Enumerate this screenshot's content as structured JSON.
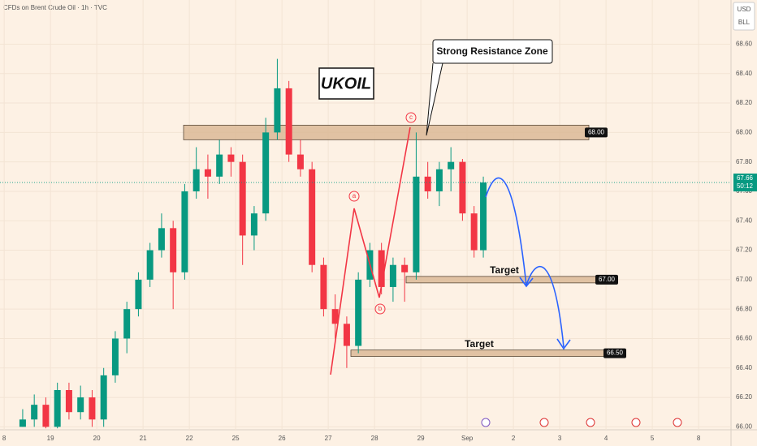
{
  "chart_data": {
    "type": "candlestick",
    "title": "CFDs on Brent Crude Oil · 1h · TVC",
    "currency": "USD",
    "unit": "BLL",
    "x": [
      0.4,
      0.65,
      0.9,
      1.15,
      1.4,
      1.65,
      1.9,
      2.15,
      2.4,
      2.65,
      2.9,
      3.15,
      3.4,
      3.65,
      3.9,
      4.15,
      4.4,
      4.65,
      4.9,
      5.15,
      5.4,
      5.65,
      5.9,
      6.15,
      6.4,
      6.65,
      6.9,
      7.15,
      7.4,
      7.65,
      7.9,
      8.15,
      8.4,
      8.65,
      8.9,
      9.15,
      9.4,
      9.65,
      9.9,
      10.15,
      10.35
    ],
    "ohlc": [
      [
        66.0,
        66.12,
        66.0,
        66.05
      ],
      [
        66.05,
        66.22,
        66.0,
        66.15
      ],
      [
        66.15,
        66.2,
        65.99,
        66.0
      ],
      [
        66.0,
        66.3,
        65.99,
        66.25
      ],
      [
        66.25,
        66.3,
        66.05,
        66.1
      ],
      [
        66.1,
        66.28,
        66.05,
        66.2
      ],
      [
        66.2,
        66.25,
        66.0,
        66.05
      ],
      [
        66.05,
        66.4,
        66.0,
        66.35
      ],
      [
        66.35,
        66.65,
        66.3,
        66.6
      ],
      [
        66.6,
        66.85,
        66.5,
        66.8
      ],
      [
        66.8,
        67.05,
        66.75,
        67.0
      ],
      [
        67.0,
        67.25,
        66.95,
        67.2
      ],
      [
        67.2,
        67.45,
        67.15,
        67.35
      ],
      [
        67.35,
        67.4,
        66.8,
        67.05
      ],
      [
        67.05,
        67.65,
        67.0,
        67.6
      ],
      [
        67.6,
        67.9,
        67.55,
        67.75
      ],
      [
        67.75,
        67.85,
        67.55,
        67.7
      ],
      [
        67.7,
        67.95,
        67.65,
        67.85
      ],
      [
        67.85,
        67.9,
        67.7,
        67.8
      ],
      [
        67.8,
        67.85,
        67.1,
        67.3
      ],
      [
        67.3,
        67.5,
        67.2,
        67.45
      ],
      [
        67.45,
        68.1,
        67.4,
        68.0
      ],
      [
        68.0,
        68.5,
        67.95,
        68.3
      ],
      [
        68.3,
        68.35,
        67.8,
        67.85
      ],
      [
        67.85,
        67.95,
        67.7,
        67.75
      ],
      [
        67.75,
        67.8,
        67.05,
        67.1
      ],
      [
        67.1,
        67.15,
        66.75,
        66.8
      ],
      [
        66.8,
        66.9,
        66.6,
        66.7
      ],
      [
        66.7,
        66.75,
        66.4,
        66.55
      ],
      [
        66.55,
        67.05,
        66.5,
        67.0
      ],
      [
        67.0,
        67.25,
        66.95,
        67.2
      ],
      [
        67.2,
        67.25,
        66.9,
        66.95
      ],
      [
        66.95,
        67.15,
        66.85,
        67.1
      ],
      [
        67.1,
        67.15,
        66.85,
        67.05
      ],
      [
        67.05,
        68.0,
        67.0,
        67.7
      ],
      [
        67.7,
        67.8,
        67.55,
        67.6
      ],
      [
        67.6,
        67.8,
        67.5,
        67.75
      ],
      [
        67.75,
        67.9,
        67.6,
        67.8
      ],
      [
        67.8,
        67.82,
        67.4,
        67.45
      ],
      [
        67.45,
        67.5,
        67.15,
        67.2
      ],
      [
        67.2,
        67.7,
        67.15,
        67.66
      ]
    ],
    "up_color": "#089981",
    "down_color": "#f23645",
    "xlim": [
      -0.09,
      15.7
    ],
    "xticks": [
      {
        "value": 0,
        "label": "8"
      },
      {
        "value": 1,
        "label": "19"
      },
      {
        "value": 2,
        "label": "20"
      },
      {
        "value": 3,
        "label": "21"
      },
      {
        "value": 4,
        "label": "22"
      },
      {
        "value": 5,
        "label": "25"
      },
      {
        "value": 6,
        "label": "26"
      },
      {
        "value": 7,
        "label": "27"
      },
      {
        "value": 8,
        "label": "28"
      },
      {
        "value": 9,
        "label": "29"
      },
      {
        "value": 10,
        "label": "Sep"
      },
      {
        "value": 11,
        "label": "2"
      },
      {
        "value": 12,
        "label": "3"
      },
      {
        "value": 13,
        "label": "4"
      },
      {
        "value": 14,
        "label": "5"
      },
      {
        "value": 15,
        "label": "8"
      }
    ],
    "ylim": [
      65.98,
      68.9
    ],
    "yticks": [
      {
        "value": 66,
        "label": "66.00"
      },
      {
        "value": 66.2,
        "label": "66.20"
      },
      {
        "value": 66.4,
        "label": "66.40"
      },
      {
        "value": 66.6,
        "label": "66.60"
      },
      {
        "value": 66.8,
        "label": "66.80"
      },
      {
        "value": 67,
        "label": "67.00"
      },
      {
        "value": 67.2,
        "label": "67.20"
      },
      {
        "value": 67.4,
        "label": "67.40"
      },
      {
        "value": 67.6,
        "label": "67.60"
      },
      {
        "value": 67.8,
        "label": "67.80"
      },
      {
        "value": 68,
        "label": "68.00"
      },
      {
        "value": 68.2,
        "label": "68.20"
      },
      {
        "value": 68.4,
        "label": "68.40"
      },
      {
        "value": 68.6,
        "label": "68.60"
      }
    ],
    "last_price": {
      "value": 67.66,
      "label": "67.66"
    },
    "countdown": "50:12",
    "symbol_label": "UKOIL",
    "callout": "Strong Resistance Zone",
    "waves": [
      "a",
      "b",
      "c"
    ],
    "levels": [
      {
        "value": 68,
        "label": "68.00"
      },
      {
        "value": 67,
        "label": "67.00",
        "text": "Target"
      },
      {
        "value": 66.5,
        "label": "66.50",
        "text": "Target"
      }
    ]
  }
}
